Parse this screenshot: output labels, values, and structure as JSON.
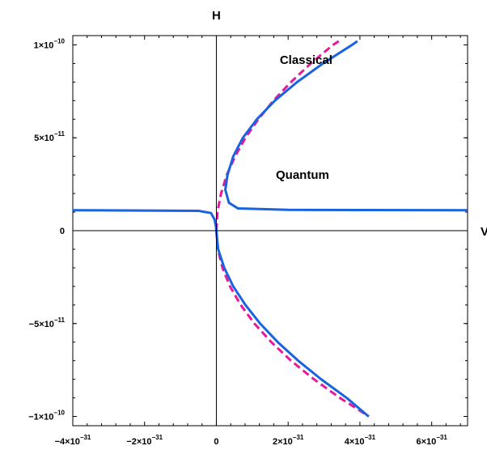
{
  "chart_data": {
    "type": "line",
    "title": "",
    "xlabel": "V",
    "ylabel": "H",
    "xlim": [
      -4e-31,
      7e-31
    ],
    "ylim": [
      -1.05e-10,
      1.05e-10
    ],
    "x_ticks": [
      {
        "value": -4e-31,
        "mantissa": "−4",
        "exp": "−31"
      },
      {
        "value": -2e-31,
        "mantissa": "−2",
        "exp": "−31"
      },
      {
        "value": 0,
        "mantissa": "0",
        "exp": ""
      },
      {
        "value": 2e-31,
        "mantissa": "2",
        "exp": "−31"
      },
      {
        "value": 4e-31,
        "mantissa": "4",
        "exp": "−31"
      },
      {
        "value": 6e-31,
        "mantissa": "6",
        "exp": "−31"
      }
    ],
    "y_ticks": [
      {
        "value": 1e-10,
        "mantissa": "1",
        "exp": "−10"
      },
      {
        "value": 5e-11,
        "mantissa": "5",
        "exp": "−11"
      },
      {
        "value": 0,
        "mantissa": "0",
        "exp": ""
      },
      {
        "value": -5e-11,
        "mantissa": "−5",
        "exp": "−11"
      },
      {
        "value": -1e-10,
        "mantissa": "−1",
        "exp": "−10"
      }
    ],
    "times_symbol": "×",
    "tick_base": "10",
    "grid": false,
    "series": [
      {
        "name": "Classical",
        "color": "#e8189a",
        "dash": "dashed",
        "points": [
          [
            0,
            0
          ],
          [
            3e-33,
            1e-11
          ],
          [
            1.3e-32,
            2e-11
          ],
          [
            2.9e-32,
            3e-11
          ],
          [
            5.2e-32,
            4e-11
          ],
          [
            8.1e-32,
            5e-11
          ],
          [
            1.17e-31,
            6e-11
          ],
          [
            1.59e-31,
            7e-11
          ],
          [
            2.08e-31,
            8e-11
          ],
          [
            2.63e-31,
            9e-11
          ],
          [
            3.25e-31,
            1e-10
          ],
          [
            3.41e-31,
            1.02e-10
          ]
        ]
      },
      {
        "name": "Classical",
        "color": "#e8189a",
        "dash": "dashed",
        "points": [
          [
            0,
            0
          ],
          [
            4e-33,
            -1e-11
          ],
          [
            1.7e-32,
            -2e-11
          ],
          [
            3.8e-32,
            -3e-11
          ],
          [
            6.8e-32,
            -4e-11
          ],
          [
            1.06e-31,
            -5e-11
          ],
          [
            1.53e-31,
            -6e-11
          ],
          [
            2.08e-31,
            -7e-11
          ],
          [
            2.72e-31,
            -8e-11
          ],
          [
            3.44e-31,
            -9e-11
          ],
          [
            4.25e-31,
            -1e-10
          ]
        ]
      },
      {
        "name": "Quantum",
        "color": "#1a63e0",
        "dash": "solid",
        "points": [
          [
            7e-31,
            1.1e-11
          ],
          [
            2e-31,
            1.12e-11
          ],
          [
            6e-32,
            1.2e-11
          ],
          [
            3.5e-32,
            1.5e-11
          ],
          [
            2.5e-32,
            2.2e-11
          ],
          [
            3.1e-32,
            3e-11
          ],
          [
            4.7e-32,
            4e-11
          ],
          [
            7.4e-32,
            5e-11
          ],
          [
            1.13e-31,
            6e-11
          ],
          [
            1.63e-31,
            7e-11
          ],
          [
            2.25e-31,
            8e-11
          ],
          [
            2.97e-31,
            9e-11
          ],
          [
            3.78e-31,
            1e-10
          ],
          [
            3.93e-31,
            1.02e-10
          ]
        ]
      },
      {
        "name": "Quantum",
        "color": "#1a63e0",
        "dash": "solid",
        "points": [
          [
            -4e-31,
            1.1e-11
          ],
          [
            -5e-32,
            1.07e-11
          ],
          [
            -1.5e-32,
            9.5e-12
          ],
          [
            -5e-33,
            6e-12
          ],
          [
            -1e-33,
            2e-12
          ],
          [
            0,
            0
          ],
          [
            5e-33,
            -1e-11
          ],
          [
            2.2e-32,
            -2e-11
          ],
          [
            4.7e-32,
            -3e-11
          ],
          [
            8.1e-32,
            -4e-11
          ],
          [
            1.22e-31,
            -5e-11
          ],
          [
            1.71e-31,
            -6e-11
          ],
          [
            2.28e-31,
            -7e-11
          ],
          [
            2.92e-31,
            -8e-11
          ],
          [
            3.63e-31,
            -9e-11
          ],
          [
            4.24e-31,
            -1e-10
          ]
        ]
      }
    ],
    "annotations": [
      {
        "text": "Classical",
        "x": 2.5e-31,
        "y": 9.2e-11
      },
      {
        "text": "Quantum",
        "x": 2.4e-31,
        "y": 3e-11
      }
    ]
  }
}
